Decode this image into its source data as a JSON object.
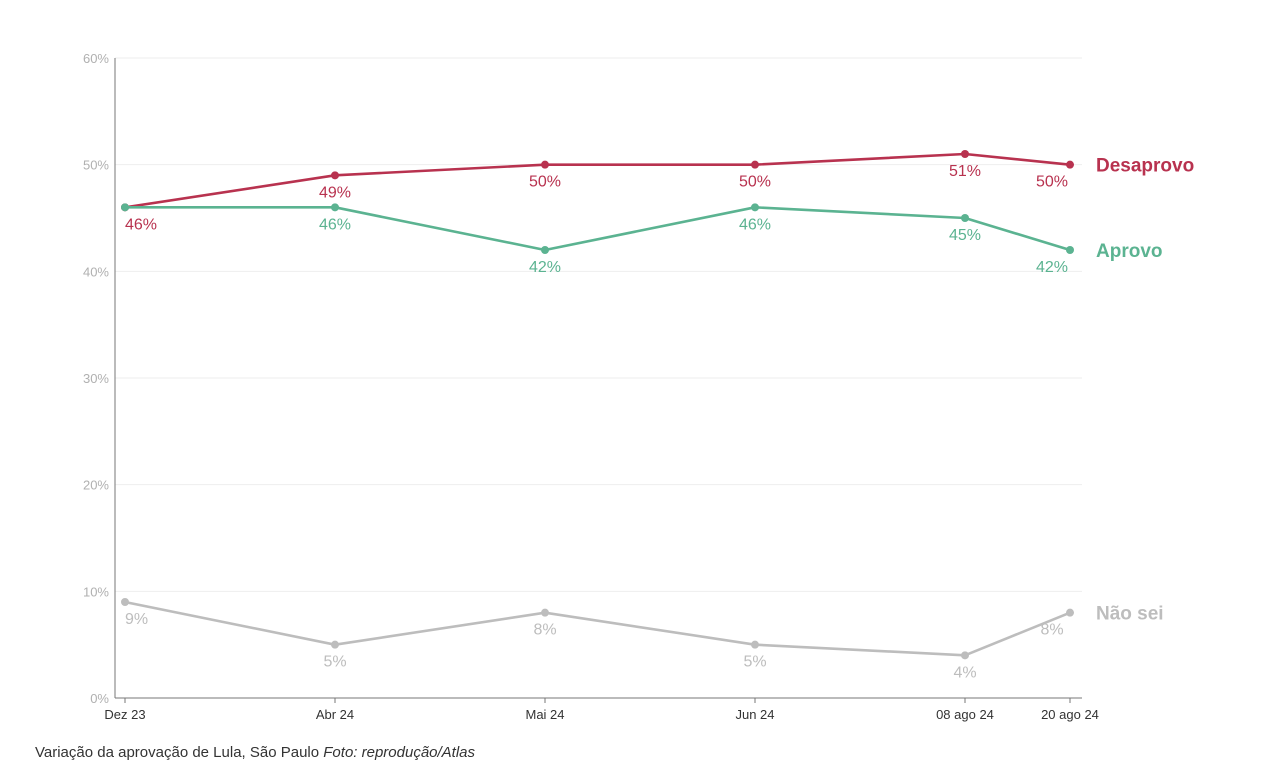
{
  "chart_data": {
    "type": "line",
    "categories": [
      "Dez 23",
      "Abr 24",
      "Mai 24",
      "Jun 24",
      "08 ago 24",
      "20 ago 24"
    ],
    "ylim": [
      0,
      60
    ],
    "yticks": [
      0,
      10,
      20,
      30,
      40,
      50,
      60
    ],
    "ytick_labels": [
      "0%",
      "10%",
      "20%",
      "30%",
      "40%",
      "50%",
      "60%"
    ],
    "grid": true,
    "series": [
      {
        "name": "Desaprovo",
        "color": "#b8324f",
        "values": [
          46,
          49,
          50,
          50,
          51,
          50
        ],
        "labels": [
          "46%",
          "49%",
          "50%",
          "50%",
          "51%",
          "50%"
        ]
      },
      {
        "name": "Aprovo",
        "color": "#5bb391",
        "values": [
          46,
          46,
          42,
          46,
          45,
          42
        ],
        "labels": [
          "46%",
          "46%",
          "42%",
          "46%",
          "45%",
          "42%"
        ]
      },
      {
        "name": "Não sei",
        "color": "#bdbdbd",
        "values": [
          9,
          5,
          8,
          5,
          4,
          8
        ],
        "labels": [
          "9%",
          "5%",
          "8%",
          "5%",
          "4%",
          "8%"
        ]
      }
    ]
  },
  "caption": {
    "text": "Variação da aprovação de Lula, São Paulo",
    "credit": "Foto: reprodução/Atlas"
  }
}
